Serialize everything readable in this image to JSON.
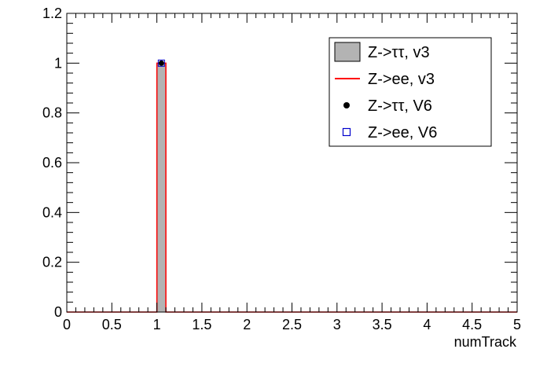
{
  "chart_data": {
    "type": "histogram",
    "xlabel": "numTrack",
    "ylabel": "",
    "xlim": [
      0,
      5
    ],
    "ylim": [
      0,
      1.2
    ],
    "bin_width": 0.1,
    "x_ticks": [
      "0",
      "0.5",
      "1",
      "1.5",
      "2",
      "2.5",
      "3",
      "3.5",
      "4",
      "4.5",
      "5"
    ],
    "y_ticks": [
      "0",
      "0.2",
      "0.4",
      "0.6",
      "0.8",
      "1",
      "1.2"
    ],
    "legend_position": "top-right",
    "series": [
      {
        "name": "Z->ττ, v3",
        "style": "filled-histogram",
        "color": "#b3b3b3",
        "bins": [
          {
            "x": 1.0,
            "y": 1.0
          }
        ]
      },
      {
        "name": "Z->ee, v3",
        "style": "line-histogram",
        "color": "#ff0000",
        "bins": [
          {
            "x": 1.0,
            "y": 1.0
          }
        ]
      },
      {
        "name": "Z->ττ, V6",
        "style": "filled-circle-markers",
        "color": "#000000",
        "points": [
          {
            "x": 1.05,
            "y": 1.0
          }
        ]
      },
      {
        "name": "Z->ee, V6",
        "style": "open-square-markers",
        "color": "#0000cc",
        "points": [
          {
            "x": 1.05,
            "y": 1.0
          }
        ]
      }
    ]
  }
}
